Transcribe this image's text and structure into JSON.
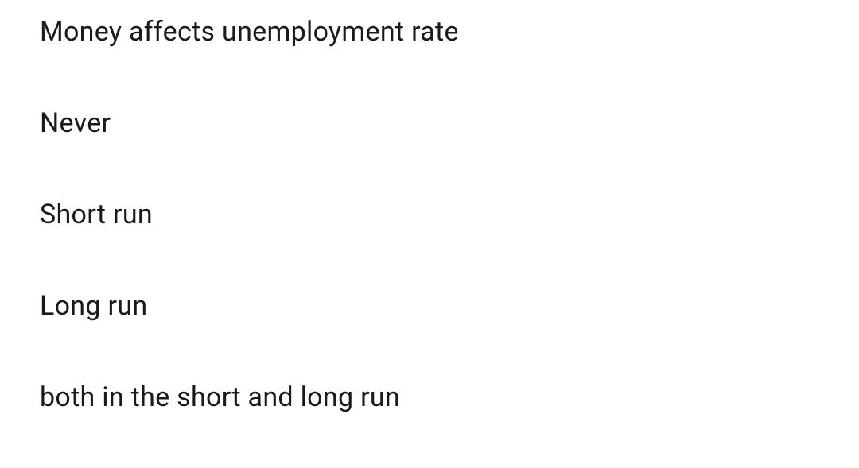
{
  "question": "Money affects unemployment rate",
  "options": [
    "Never",
    "Short run",
    "Long run",
    "both in the short and long run"
  ],
  "styling": {
    "background_color": "#ffffff",
    "text_color": "#1a1a1a",
    "font_size": 34,
    "line_gap": 75
  }
}
